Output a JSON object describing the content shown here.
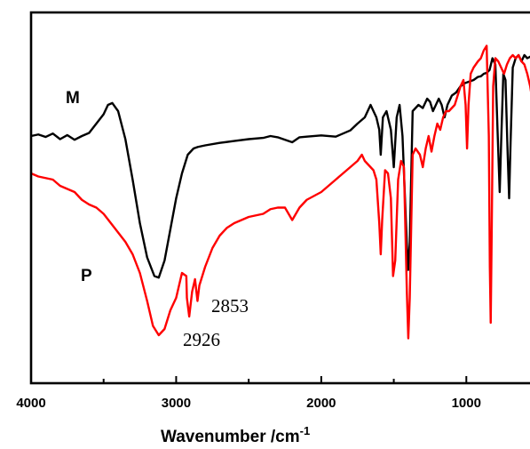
{
  "chart_data": {
    "type": "line",
    "xlabel": "Wavenumber /cm",
    "xlabel_superscript": "-1",
    "xlim": [
      4000,
      500
    ],
    "x_reversed": true,
    "x_ticks": [
      4000,
      3000,
      2000,
      1000
    ],
    "x_minor_ticks": [
      3500,
      2500,
      1500,
      500
    ],
    "y_ticks_shown": false,
    "series": [
      {
        "name": "M",
        "color": "#000000",
        "points": [
          [
            4000,
            0.7
          ],
          [
            3950,
            0.705
          ],
          [
            3900,
            0.697
          ],
          [
            3850,
            0.708
          ],
          [
            3800,
            0.69
          ],
          [
            3750,
            0.703
          ],
          [
            3700,
            0.688
          ],
          [
            3650,
            0.7
          ],
          [
            3600,
            0.71
          ],
          [
            3550,
            0.74
          ],
          [
            3500,
            0.77
          ],
          [
            3470,
            0.8
          ],
          [
            3440,
            0.806
          ],
          [
            3400,
            0.78
          ],
          [
            3350,
            0.69
          ],
          [
            3300,
            0.56
          ],
          [
            3250,
            0.42
          ],
          [
            3200,
            0.31
          ],
          [
            3150,
            0.25
          ],
          [
            3120,
            0.245
          ],
          [
            3080,
            0.3
          ],
          [
            3040,
            0.4
          ],
          [
            3000,
            0.5
          ],
          [
            2960,
            0.58
          ],
          [
            2920,
            0.64
          ],
          [
            2880,
            0.66
          ],
          [
            2850,
            0.665
          ],
          [
            2800,
            0.67
          ],
          [
            2700,
            0.678
          ],
          [
            2600,
            0.684
          ],
          [
            2500,
            0.69
          ],
          [
            2400,
            0.694
          ],
          [
            2350,
            0.7
          ],
          [
            2300,
            0.696
          ],
          [
            2200,
            0.68
          ],
          [
            2150,
            0.696
          ],
          [
            2100,
            0.698
          ],
          [
            2000,
            0.702
          ],
          [
            1900,
            0.698
          ],
          [
            1800,
            0.718
          ],
          [
            1750,
            0.74
          ],
          [
            1700,
            0.76
          ],
          [
            1660,
            0.8
          ],
          [
            1640,
            0.78
          ],
          [
            1620,
            0.76
          ],
          [
            1600,
            0.72
          ],
          [
            1590,
            0.64
          ],
          [
            1575,
            0.76
          ],
          [
            1550,
            0.78
          ],
          [
            1520,
            0.72
          ],
          [
            1500,
            0.6
          ],
          [
            1480,
            0.76
          ],
          [
            1460,
            0.8
          ],
          [
            1440,
            0.7
          ],
          [
            1410,
            0.35
          ],
          [
            1400,
            0.27
          ],
          [
            1390,
            0.36
          ],
          [
            1370,
            0.78
          ],
          [
            1330,
            0.8
          ],
          [
            1300,
            0.79
          ],
          [
            1270,
            0.82
          ],
          [
            1250,
            0.81
          ],
          [
            1230,
            0.78
          ],
          [
            1210,
            0.8
          ],
          [
            1190,
            0.82
          ],
          [
            1170,
            0.8
          ],
          [
            1150,
            0.76
          ],
          [
            1130,
            0.8
          ],
          [
            1100,
            0.83
          ],
          [
            1070,
            0.84
          ],
          [
            1040,
            0.86
          ],
          [
            1010,
            0.87
          ],
          [
            980,
            0.875
          ],
          [
            950,
            0.88
          ],
          [
            920,
            0.89
          ],
          [
            900,
            0.892
          ],
          [
            880,
            0.9
          ],
          [
            860,
            0.903
          ],
          [
            840,
            0.912
          ],
          [
            820,
            0.95
          ],
          [
            800,
            0.93
          ],
          [
            785,
            0.72
          ],
          [
            770,
            0.52
          ],
          [
            760,
            0.68
          ],
          [
            745,
            0.9
          ],
          [
            730,
            0.88
          ],
          [
            715,
            0.64
          ],
          [
            705,
            0.5
          ],
          [
            695,
            0.68
          ],
          [
            680,
            0.92
          ],
          [
            660,
            0.95
          ],
          [
            640,
            0.96
          ],
          [
            620,
            0.94
          ],
          [
            600,
            0.96
          ],
          [
            580,
            0.95
          ],
          [
            560,
            0.955
          ],
          [
            540,
            0.96
          ],
          [
            520,
            0.95
          ],
          [
            500,
            0.955
          ]
        ]
      },
      {
        "name": "P",
        "color": "#ff0000",
        "points": [
          [
            4000,
            0.58
          ],
          [
            3950,
            0.57
          ],
          [
            3900,
            0.565
          ],
          [
            3850,
            0.56
          ],
          [
            3800,
            0.54
          ],
          [
            3750,
            0.53
          ],
          [
            3700,
            0.52
          ],
          [
            3650,
            0.495
          ],
          [
            3600,
            0.48
          ],
          [
            3550,
            0.47
          ],
          [
            3500,
            0.45
          ],
          [
            3450,
            0.42
          ],
          [
            3400,
            0.39
          ],
          [
            3350,
            0.36
          ],
          [
            3300,
            0.32
          ],
          [
            3250,
            0.26
          ],
          [
            3200,
            0.17
          ],
          [
            3160,
            0.09
          ],
          [
            3120,
            0.06
          ],
          [
            3080,
            0.08
          ],
          [
            3040,
            0.14
          ],
          [
            3000,
            0.18
          ],
          [
            2960,
            0.26
          ],
          [
            2930,
            0.25
          ],
          [
            2926,
            0.18
          ],
          [
            2910,
            0.12
          ],
          [
            2890,
            0.2
          ],
          [
            2870,
            0.24
          ],
          [
            2853,
            0.17
          ],
          [
            2840,
            0.22
          ],
          [
            2800,
            0.28
          ],
          [
            2750,
            0.34
          ],
          [
            2700,
            0.38
          ],
          [
            2650,
            0.405
          ],
          [
            2600,
            0.42
          ],
          [
            2500,
            0.44
          ],
          [
            2400,
            0.45
          ],
          [
            2350,
            0.465
          ],
          [
            2300,
            0.47
          ],
          [
            2250,
            0.47
          ],
          [
            2200,
            0.43
          ],
          [
            2150,
            0.47
          ],
          [
            2100,
            0.495
          ],
          [
            2000,
            0.52
          ],
          [
            1950,
            0.54
          ],
          [
            1900,
            0.56
          ],
          [
            1850,
            0.58
          ],
          [
            1800,
            0.6
          ],
          [
            1750,
            0.62
          ],
          [
            1720,
            0.64
          ],
          [
            1700,
            0.62
          ],
          [
            1680,
            0.61
          ],
          [
            1660,
            0.6
          ],
          [
            1640,
            0.59
          ],
          [
            1620,
            0.56
          ],
          [
            1600,
            0.42
          ],
          [
            1590,
            0.32
          ],
          [
            1580,
            0.43
          ],
          [
            1560,
            0.59
          ],
          [
            1540,
            0.58
          ],
          [
            1520,
            0.5
          ],
          [
            1505,
            0.25
          ],
          [
            1490,
            0.3
          ],
          [
            1470,
            0.56
          ],
          [
            1450,
            0.62
          ],
          [
            1430,
            0.6
          ],
          [
            1410,
            0.2
          ],
          [
            1400,
            0.05
          ],
          [
            1390,
            0.18
          ],
          [
            1370,
            0.64
          ],
          [
            1350,
            0.66
          ],
          [
            1320,
            0.64
          ],
          [
            1300,
            0.6
          ],
          [
            1280,
            0.66
          ],
          [
            1260,
            0.7
          ],
          [
            1240,
            0.65
          ],
          [
            1220,
            0.7
          ],
          [
            1200,
            0.74
          ],
          [
            1180,
            0.72
          ],
          [
            1160,
            0.76
          ],
          [
            1140,
            0.78
          ],
          [
            1120,
            0.78
          ],
          [
            1100,
            0.79
          ],
          [
            1080,
            0.8
          ],
          [
            1060,
            0.83
          ],
          [
            1040,
            0.86
          ],
          [
            1020,
            0.88
          ],
          [
            1005,
            0.8
          ],
          [
            995,
            0.66
          ],
          [
            985,
            0.8
          ],
          [
            970,
            0.9
          ],
          [
            950,
            0.92
          ],
          [
            920,
            0.94
          ],
          [
            900,
            0.95
          ],
          [
            880,
            0.975
          ],
          [
            860,
            0.99
          ],
          [
            845,
            0.7
          ],
          [
            838,
            0.28
          ],
          [
            832,
            0.1
          ],
          [
            825,
            0.4
          ],
          [
            815,
            0.86
          ],
          [
            800,
            0.95
          ],
          [
            780,
            0.94
          ],
          [
            760,
            0.92
          ],
          [
            740,
            0.9
          ],
          [
            720,
            0.93
          ],
          [
            700,
            0.95
          ],
          [
            680,
            0.96
          ],
          [
            660,
            0.95
          ],
          [
            640,
            0.96
          ],
          [
            620,
            0.94
          ],
          [
            600,
            0.93
          ],
          [
            580,
            0.9
          ],
          [
            560,
            0.86
          ],
          [
            540,
            0.8
          ],
          [
            525,
            0.76
          ],
          [
            515,
            0.7
          ],
          [
            505,
            0.72
          ],
          [
            500,
            0.74
          ]
        ]
      }
    ],
    "annotations": [
      {
        "text": "2853",
        "x": 2853,
        "y": 0.17
      },
      {
        "text": "2926",
        "x": 2926,
        "y": 0.18
      }
    ]
  }
}
